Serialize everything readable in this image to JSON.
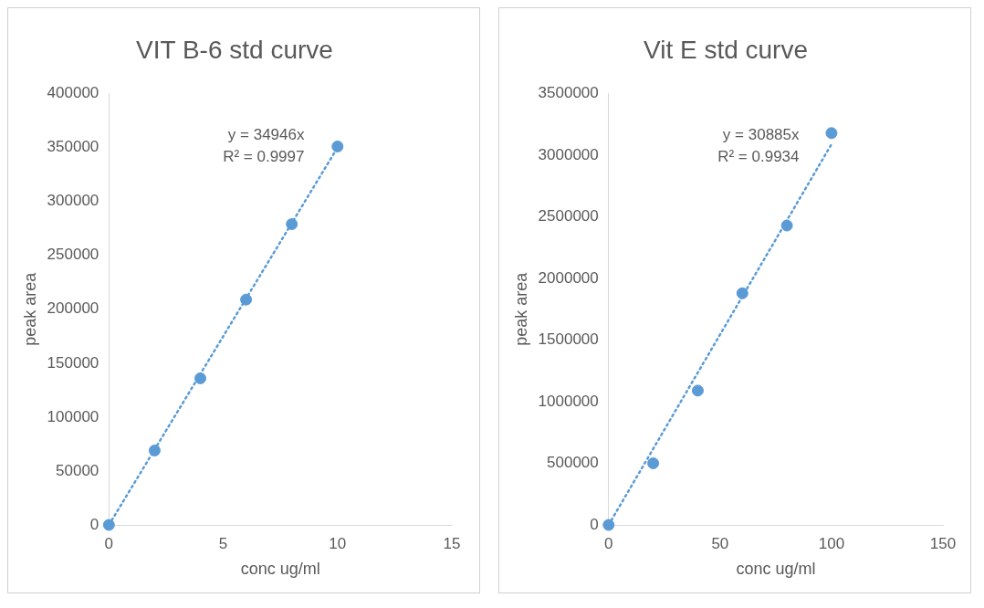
{
  "chart_data": [
    {
      "type": "scatter",
      "title": "VIT B-6 std curve",
      "xlabel": "conc ug/ml",
      "ylabel": "peak area",
      "xlim": [
        0,
        15
      ],
      "xticks": [
        0,
        5,
        10,
        15
      ],
      "ylim": [
        0,
        400000
      ],
      "yticks": [
        0,
        50000,
        100000,
        150000,
        200000,
        250000,
        300000,
        350000,
        400000
      ],
      "grid": false,
      "legend": false,
      "annotations": [
        "y = 34946x",
        "R² = 0.9997"
      ],
      "series": [
        {
          "color": "#5b9bd5",
          "marker": "circle",
          "x": [
            0,
            2,
            4,
            6,
            8,
            10
          ],
          "values": [
            0,
            69000,
            136000,
            209000,
            279000,
            351000
          ]
        },
        {
          "type": "line",
          "color": "#5b9bd5",
          "marker": "none",
          "line_style": "dotted",
          "x": [
            0,
            10
          ],
          "values": [
            0,
            350000
          ]
        }
      ]
    },
    {
      "type": "scatter",
      "title": "Vit E std curve",
      "xlabel": "conc ug/ml",
      "ylabel": "peak area",
      "xlim": [
        0,
        150
      ],
      "xticks": [
        0,
        50,
        100,
        150
      ],
      "ylim": [
        0,
        3500000
      ],
      "yticks": [
        0,
        500000,
        1000000,
        1500000,
        2000000,
        2500000,
        3000000,
        3500000
      ],
      "grid": false,
      "legend": false,
      "annotations": [
        "y = 30885x",
        "R² = 0.9934"
      ],
      "series": [
        {
          "color": "#5b9bd5",
          "marker": "circle",
          "x": [
            0,
            20,
            40,
            60,
            80,
            100
          ],
          "values": [
            0,
            500000,
            1090000,
            1880000,
            2430000,
            3180000
          ]
        },
        {
          "type": "line",
          "color": "#5b9bd5",
          "marker": "none",
          "line_style": "dotted",
          "x": [
            0,
            100
          ],
          "values": [
            0,
            3090000
          ]
        }
      ]
    }
  ]
}
